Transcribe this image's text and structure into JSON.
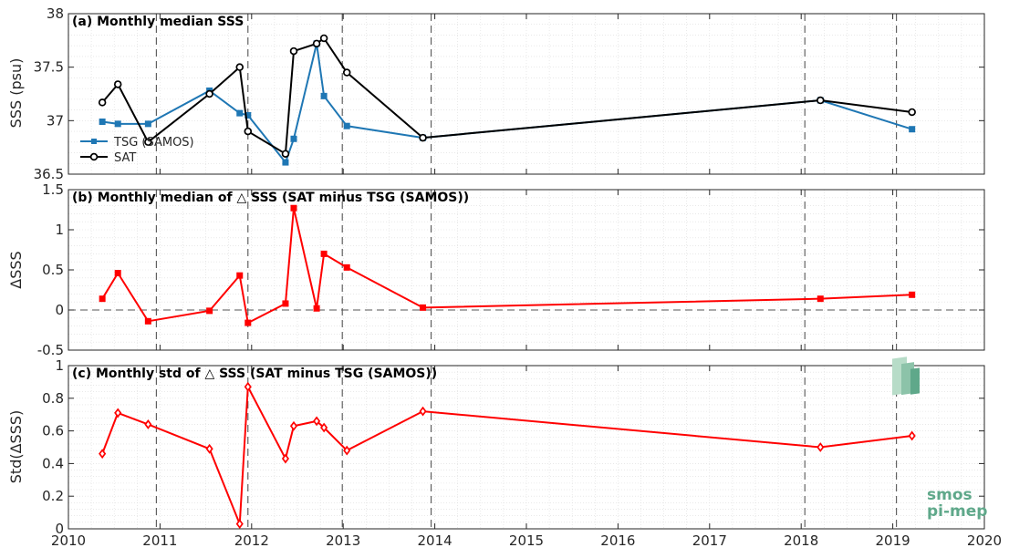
{
  "logo": {
    "line1": "smos",
    "line2": "pi-mep"
  },
  "colors": {
    "tsg": "#1f77b4",
    "sat": "#000000",
    "delta": "#ff0000",
    "grid": "#dcdcdc",
    "vline": "#555555"
  },
  "chart_data": [
    {
      "type": "line",
      "title": "(a) Monthly median SSS",
      "xlabel": "",
      "ylabel": "SSS (psu)",
      "xlim": [
        2010,
        2020
      ],
      "ylim": [
        36.5,
        38
      ],
      "yticks": [
        36.5,
        37,
        37.5,
        38
      ],
      "ytick_labels": [
        "36.5",
        "37",
        "37.5",
        "38"
      ],
      "grid": true,
      "legend_position": "lower-left",
      "series": [
        {
          "name": "TSG (SAMOS)",
          "color": "#1f77b4",
          "marker": "square",
          "x": [
            2010.37,
            2010.54,
            2010.87,
            2011.54,
            2011.87,
            2011.96,
            2012.37,
            2012.46,
            2012.71,
            2012.79,
            2013.04,
            2013.87,
            2018.21,
            2019.21
          ],
          "y": [
            36.99,
            36.97,
            36.97,
            37.28,
            37.07,
            37.05,
            36.61,
            36.83,
            37.72,
            37.23,
            36.95,
            36.84,
            37.19,
            36.92
          ]
        },
        {
          "name": "SAT",
          "color": "#000000",
          "marker": "circle",
          "x": [
            2010.37,
            2010.54,
            2010.87,
            2011.54,
            2011.87,
            2011.96,
            2012.37,
            2012.46,
            2012.71,
            2012.79,
            2013.04,
            2013.87,
            2018.21,
            2019.21
          ],
          "y": [
            37.17,
            37.34,
            36.8,
            37.25,
            37.5,
            36.9,
            36.69,
            37.65,
            37.72,
            37.77,
            37.45,
            36.84,
            37.19,
            37.08
          ]
        }
      ]
    },
    {
      "type": "line",
      "title": "(b) Monthly median of △ SSS (SAT minus TSG (SAMOS))",
      "xlabel": "",
      "ylabel": "ΔSSS",
      "xlim": [
        2010,
        2020
      ],
      "ylim": [
        -0.5,
        1.5
      ],
      "yticks": [
        -0.5,
        0,
        0.5,
        1,
        1.5
      ],
      "ytick_labels": [
        "-0.5",
        "0",
        "0.5",
        "1",
        "1.5"
      ],
      "grid": true,
      "reference_line": 0,
      "series": [
        {
          "color": "#ff0000",
          "marker": "square",
          "x": [
            2010.37,
            2010.54,
            2010.87,
            2011.54,
            2011.87,
            2011.96,
            2012.37,
            2012.46,
            2012.71,
            2012.79,
            2013.04,
            2013.87,
            2018.21,
            2019.21
          ],
          "y": [
            0.14,
            0.46,
            -0.14,
            -0.01,
            0.43,
            -0.16,
            0.08,
            1.27,
            0.02,
            0.7,
            0.53,
            0.03,
            0.14,
            0.19
          ]
        }
      ]
    },
    {
      "type": "line",
      "title": "(c) Monthly std of △ SSS (SAT minus TSG (SAMOS))",
      "xlabel": "",
      "ylabel": "Std(ΔSSS)",
      "xlim": [
        2010,
        2020
      ],
      "ylim": [
        0,
        1
      ],
      "yticks": [
        0,
        0.2,
        0.4,
        0.6,
        0.8,
        1
      ],
      "ytick_labels": [
        "0",
        "0.2",
        "0.4",
        "0.6",
        "0.8",
        "1"
      ],
      "xticks": [
        2010,
        2011,
        2012,
        2013,
        2014,
        2015,
        2016,
        2017,
        2018,
        2019,
        2020
      ],
      "xtick_labels": [
        "2010",
        "2011",
        "2012",
        "2013",
        "2014",
        "2015",
        "2016",
        "2017",
        "2018",
        "2019",
        "2020"
      ],
      "grid": true,
      "series": [
        {
          "color": "#ff0000",
          "marker": "diamond",
          "x": [
            2010.37,
            2010.54,
            2010.87,
            2011.54,
            2011.87,
            2011.96,
            2012.37,
            2012.46,
            2012.71,
            2012.79,
            2013.04,
            2013.87,
            2018.21,
            2019.21
          ],
          "y": [
            0.46,
            0.71,
            0.64,
            0.49,
            0.03,
            0.87,
            0.43,
            0.63,
            0.66,
            0.62,
            0.48,
            0.72,
            0.5,
            0.57
          ]
        }
      ]
    }
  ],
  "dashed_years": [
    2010.96,
    2011.96,
    2012.99,
    2013.96,
    2018.04,
    2019.04
  ]
}
